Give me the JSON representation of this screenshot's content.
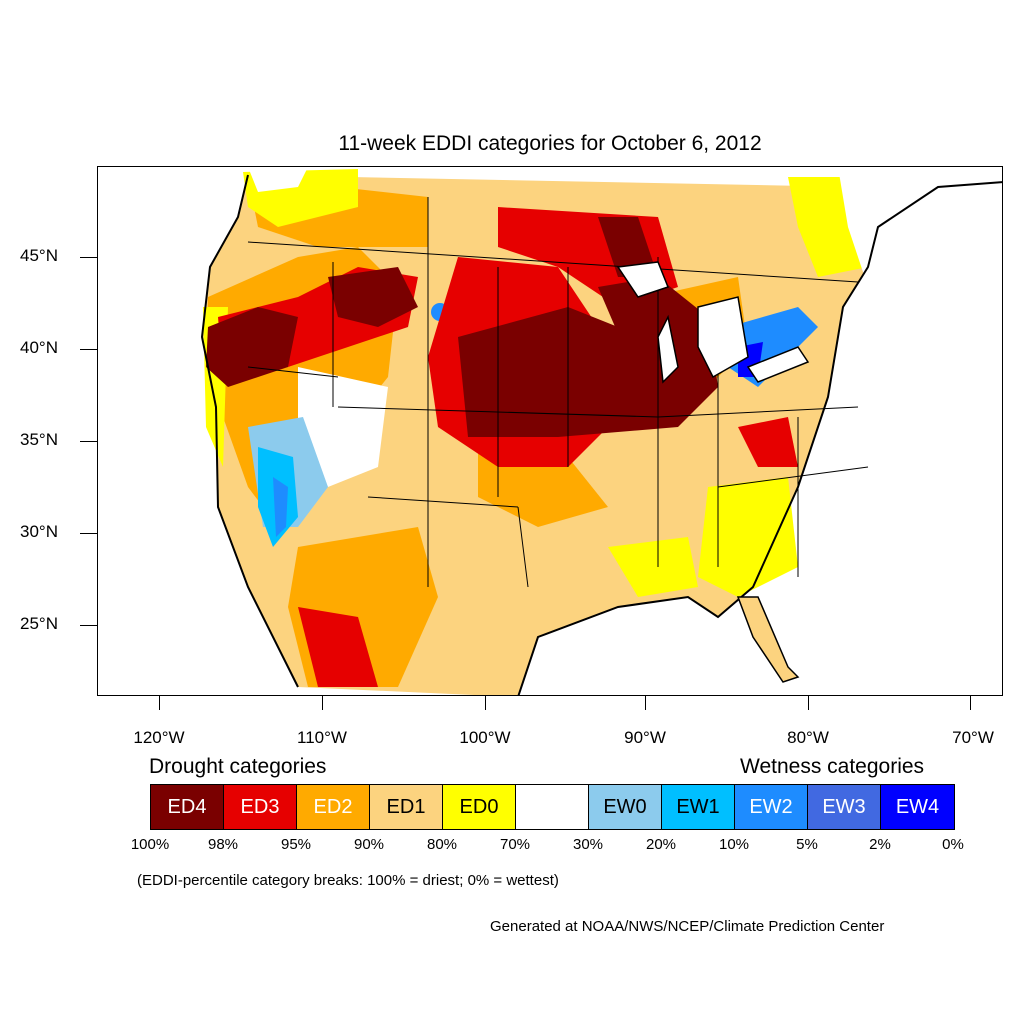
{
  "title": "11-week EDDI categories for October 6, 2012",
  "axes": {
    "lat_labels": [
      "45°N",
      "40°N",
      "35°N",
      "30°N",
      "25°N"
    ],
    "lon_labels": [
      "120°W",
      "110°W",
      "100°W",
      "90°W",
      "80°W",
      "70°W"
    ]
  },
  "legend": {
    "drought_heading": "Drought categories",
    "wetness_heading": "Wetness categories",
    "categories": [
      {
        "label": "ED4",
        "color": "#7a0000",
        "text_color": "#ffffff"
      },
      {
        "label": "ED3",
        "color": "#e60000",
        "text_color": "#ffffff"
      },
      {
        "label": "ED2",
        "color": "#ffaa00",
        "text_color": "#ffffff"
      },
      {
        "label": "ED1",
        "color": "#fcd37f",
        "text_color": "#000000"
      },
      {
        "label": "ED0",
        "color": "#ffff00",
        "text_color": "#000000"
      },
      {
        "label": "",
        "color": "#ffffff",
        "text_color": "#000000"
      },
      {
        "label": "EW0",
        "color": "#8ccbed",
        "text_color": "#000000"
      },
      {
        "label": "EW1",
        "color": "#00bfff",
        "text_color": "#000000"
      },
      {
        "label": "EW2",
        "color": "#1e8cff",
        "text_color": "#ffffff"
      },
      {
        "label": "EW3",
        "color": "#4169e1",
        "text_color": "#ffffff"
      },
      {
        "label": "EW4",
        "color": "#0000ff",
        "text_color": "#ffffff"
      }
    ],
    "percent_breaks": [
      "100%",
      "98%",
      "95%",
      "90%",
      "80%",
      "70%",
      "30%",
      "20%",
      "10%",
      "5%",
      "2%",
      "0%"
    ]
  },
  "note": "(EDDI-percentile category breaks: 100% = driest; 0% = wettest)",
  "credit": "Generated at NOAA/NWS/NCEP/Climate Prediction Center"
}
